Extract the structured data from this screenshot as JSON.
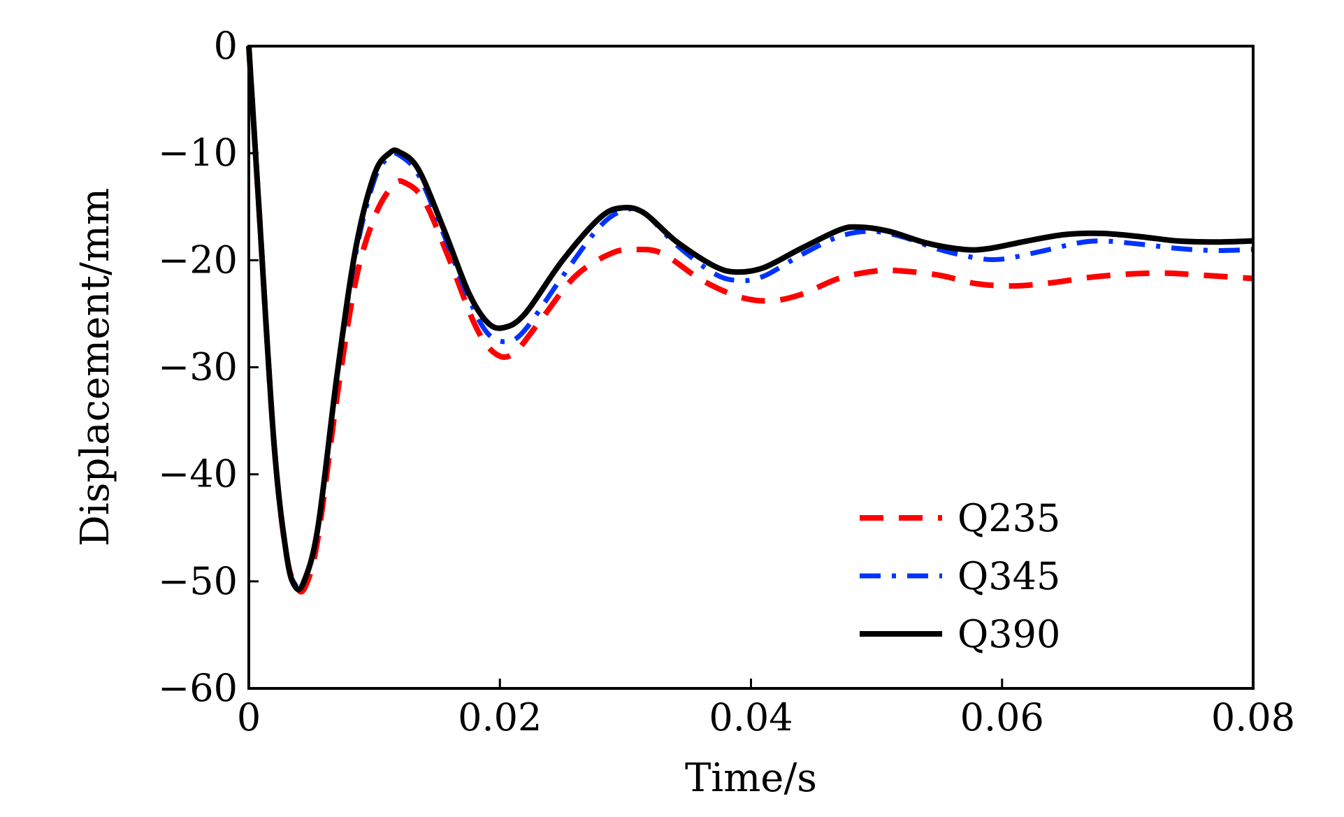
{
  "chart_data": {
    "type": "line",
    "xlabel": "Time/s",
    "ylabel": "Displacement/mm",
    "xlim": [
      0,
      0.08
    ],
    "ylim": [
      -60,
      0
    ],
    "x_ticks": [
      0,
      0.02,
      0.04,
      0.06,
      0.08
    ],
    "x_tick_labels": [
      "0",
      "0.02",
      "0.04",
      "0.06",
      "0.08"
    ],
    "y_ticks": [
      0,
      -10,
      -20,
      -30,
      -40,
      -50,
      -60
    ],
    "y_tick_labels": [
      "0",
      "−10",
      "−20",
      "−30",
      "−40",
      "−50",
      "−60"
    ],
    "grid": false,
    "legend_position": "lower-right",
    "series": [
      {
        "name": "Q235",
        "color": "#ff0000",
        "line_style": "dashed",
        "points": [
          [
            0,
            0
          ],
          [
            0.0008,
            -15
          ],
          [
            0.002,
            -37
          ],
          [
            0.003,
            -47.5
          ],
          [
            0.0038,
            -50.5
          ],
          [
            0.0045,
            -50.5
          ],
          [
            0.0055,
            -46
          ],
          [
            0.007,
            -33
          ],
          [
            0.0085,
            -22
          ],
          [
            0.01,
            -16
          ],
          [
            0.0115,
            -13
          ],
          [
            0.0125,
            -12.8
          ],
          [
            0.014,
            -14.5
          ],
          [
            0.016,
            -20
          ],
          [
            0.018,
            -26
          ],
          [
            0.0195,
            -28.6
          ],
          [
            0.021,
            -28.8
          ],
          [
            0.023,
            -26
          ],
          [
            0.026,
            -21.5
          ],
          [
            0.029,
            -19.3
          ],
          [
            0.031,
            -19
          ],
          [
            0.033,
            -19.4
          ],
          [
            0.036,
            -21.8
          ],
          [
            0.039,
            -23.4
          ],
          [
            0.0415,
            -23.8
          ],
          [
            0.044,
            -23.2
          ],
          [
            0.047,
            -21.7
          ],
          [
            0.05,
            -21
          ],
          [
            0.052,
            -21
          ],
          [
            0.055,
            -21.4
          ],
          [
            0.058,
            -22.2
          ],
          [
            0.061,
            -22.4
          ],
          [
            0.064,
            -22.1
          ],
          [
            0.067,
            -21.6
          ],
          [
            0.07,
            -21.3
          ],
          [
            0.073,
            -21.2
          ],
          [
            0.076,
            -21.4
          ],
          [
            0.08,
            -21.7
          ]
        ]
      },
      {
        "name": "Q345",
        "color": "#0033ff",
        "line_style": "dash-dot",
        "points": [
          [
            0,
            0
          ],
          [
            0.0008,
            -15
          ],
          [
            0.002,
            -37
          ],
          [
            0.003,
            -47.5
          ],
          [
            0.0037,
            -50.3
          ],
          [
            0.0044,
            -50
          ],
          [
            0.0055,
            -45
          ],
          [
            0.007,
            -31
          ],
          [
            0.0085,
            -19.5
          ],
          [
            0.01,
            -12.5
          ],
          [
            0.0112,
            -10.3
          ],
          [
            0.012,
            -10.2
          ],
          [
            0.0135,
            -12
          ],
          [
            0.0155,
            -17.5
          ],
          [
            0.0175,
            -23.5
          ],
          [
            0.019,
            -26.8
          ],
          [
            0.0205,
            -27.6
          ],
          [
            0.022,
            -26.5
          ],
          [
            0.025,
            -21.5
          ],
          [
            0.028,
            -16.8
          ],
          [
            0.03,
            -15.3
          ],
          [
            0.0315,
            -15.6
          ],
          [
            0.034,
            -18.5
          ],
          [
            0.037,
            -21.2
          ],
          [
            0.039,
            -21.9
          ],
          [
            0.041,
            -21.5
          ],
          [
            0.044,
            -19.5
          ],
          [
            0.047,
            -17.8
          ],
          [
            0.0495,
            -17.3
          ],
          [
            0.052,
            -17.8
          ],
          [
            0.055,
            -19
          ],
          [
            0.058,
            -19.8
          ],
          [
            0.06,
            -19.9
          ],
          [
            0.063,
            -19.2
          ],
          [
            0.066,
            -18.4
          ],
          [
            0.068,
            -18.2
          ],
          [
            0.071,
            -18.5
          ],
          [
            0.074,
            -18.9
          ],
          [
            0.077,
            -19.1
          ],
          [
            0.08,
            -19
          ]
        ]
      },
      {
        "name": "Q390",
        "color": "#000000",
        "line_style": "solid",
        "points": [
          [
            0,
            0
          ],
          [
            0.0008,
            -15
          ],
          [
            0.002,
            -37
          ],
          [
            0.003,
            -47.5
          ],
          [
            0.0037,
            -50.5
          ],
          [
            0.0044,
            -50
          ],
          [
            0.0055,
            -45
          ],
          [
            0.007,
            -31
          ],
          [
            0.0085,
            -19
          ],
          [
            0.01,
            -12
          ],
          [
            0.0112,
            -10
          ],
          [
            0.012,
            -9.9
          ],
          [
            0.0135,
            -11.5
          ],
          [
            0.0155,
            -17
          ],
          [
            0.0175,
            -23
          ],
          [
            0.019,
            -25.8
          ],
          [
            0.0203,
            -26.3
          ],
          [
            0.022,
            -25
          ],
          [
            0.025,
            -20
          ],
          [
            0.028,
            -16
          ],
          [
            0.0298,
            -15.1
          ],
          [
            0.0315,
            -15.6
          ],
          [
            0.034,
            -18.2
          ],
          [
            0.037,
            -20.5
          ],
          [
            0.0388,
            -21.1
          ],
          [
            0.041,
            -20.7
          ],
          [
            0.044,
            -18.9
          ],
          [
            0.047,
            -17.2
          ],
          [
            0.0485,
            -16.9
          ],
          [
            0.051,
            -17.3
          ],
          [
            0.054,
            -18.4
          ],
          [
            0.057,
            -19
          ],
          [
            0.059,
            -18.9
          ],
          [
            0.062,
            -18.2
          ],
          [
            0.065,
            -17.6
          ],
          [
            0.068,
            -17.5
          ],
          [
            0.071,
            -17.8
          ],
          [
            0.074,
            -18.2
          ],
          [
            0.077,
            -18.3
          ],
          [
            0.08,
            -18.2
          ]
        ]
      }
    ]
  }
}
